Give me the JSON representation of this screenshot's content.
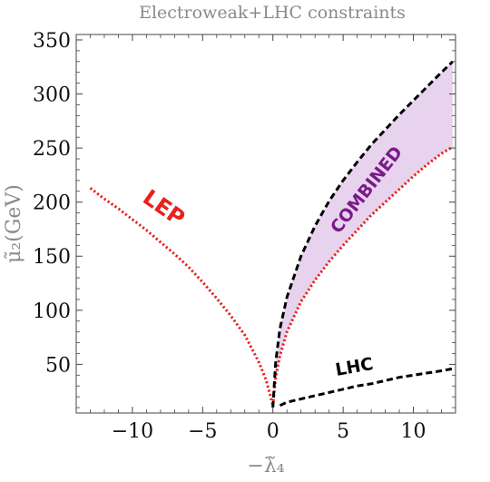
{
  "chart_data": {
    "type": "line",
    "title": "Electroweak+LHC constraints",
    "xlabel": "−λ̃₄",
    "ylabel": "μ̃₂(GeV)",
    "xlim": [
      -14,
      13
    ],
    "ylim": [
      5,
      355
    ],
    "xticks": [
      -10,
      -5,
      0,
      5,
      10
    ],
    "xtick_labels": [
      "−10",
      "−5",
      "0",
      "5",
      "10"
    ],
    "yticks": [
      50,
      100,
      150,
      200,
      250,
      300,
      350
    ],
    "ytick_labels": [
      "50",
      "100",
      "150",
      "200",
      "250",
      "300",
      "350"
    ],
    "grid": false,
    "series": [
      {
        "name": "LEP",
        "color": "#e8211b",
        "style": "dotted",
        "x": [
          -13,
          -12,
          -11,
          -10,
          -9,
          -8,
          -7,
          -6,
          -5,
          -4,
          -3,
          -2,
          -1,
          -0.5,
          -0.2,
          0
        ],
        "y": [
          213,
          203,
          194,
          184,
          174,
          163,
          152,
          140,
          126,
          111,
          95,
          77,
          52,
          36,
          22,
          12
        ]
      },
      {
        "name": "LEP",
        "color": "#e8211b",
        "style": "dotted",
        "x": [
          0,
          0.2,
          0.5,
          1,
          2,
          3,
          4,
          5,
          6,
          7,
          8,
          9,
          10,
          11,
          12,
          12.8
        ],
        "y": [
          12,
          38,
          58,
          80,
          108,
          128,
          145,
          160,
          174,
          188,
          200,
          212,
          224,
          235,
          245,
          251
        ]
      },
      {
        "name": "LHC",
        "color": "#000000",
        "style": "dashed",
        "x": [
          0,
          0.2,
          0.5,
          1,
          2,
          3,
          4,
          5,
          6,
          7,
          8,
          9,
          10,
          11,
          12,
          12.8
        ],
        "y": [
          10,
          52,
          83,
          112,
          150,
          178,
          201,
          220,
          237,
          253,
          267,
          281,
          294,
          307,
          320,
          330
        ]
      },
      {
        "name": "LHC",
        "color": "#000000",
        "style": "dashed",
        "x": [
          0.5,
          1,
          2,
          3,
          4,
          5,
          6,
          7,
          8,
          9,
          10,
          11,
          12,
          12.8
        ],
        "y": [
          12,
          15,
          18,
          21,
          24,
          27,
          30,
          32,
          35,
          38,
          40,
          42,
          44,
          46
        ]
      }
    ],
    "band": {
      "name": "COMBINED",
      "color": "#e8d3ee",
      "x": [
        0,
        0.2,
        0.5,
        1,
        2,
        3,
        4,
        5,
        6,
        7,
        8,
        9,
        10,
        11,
        12,
        12.8
      ],
      "y_low": [
        12,
        38,
        58,
        80,
        108,
        128,
        145,
        160,
        174,
        188,
        200,
        212,
        224,
        235,
        245,
        251
      ],
      "y_high": [
        10,
        52,
        83,
        112,
        150,
        178,
        201,
        220,
        237,
        253,
        267,
        281,
        294,
        307,
        320,
        330
      ]
    },
    "annotations": [
      {
        "text": "LEP",
        "x": -7.8,
        "y": 194,
        "rotation": 35,
        "color": "#e8211b",
        "size": 24
      },
      {
        "text": "COMBINED",
        "x": 6.7,
        "y": 211,
        "rotation": -52,
        "color": "#7a1a8a",
        "size": 19
      },
      {
        "text": "LHC",
        "x": 5.8,
        "y": 47,
        "rotation": -10,
        "color": "#000000",
        "size": 19
      }
    ]
  }
}
